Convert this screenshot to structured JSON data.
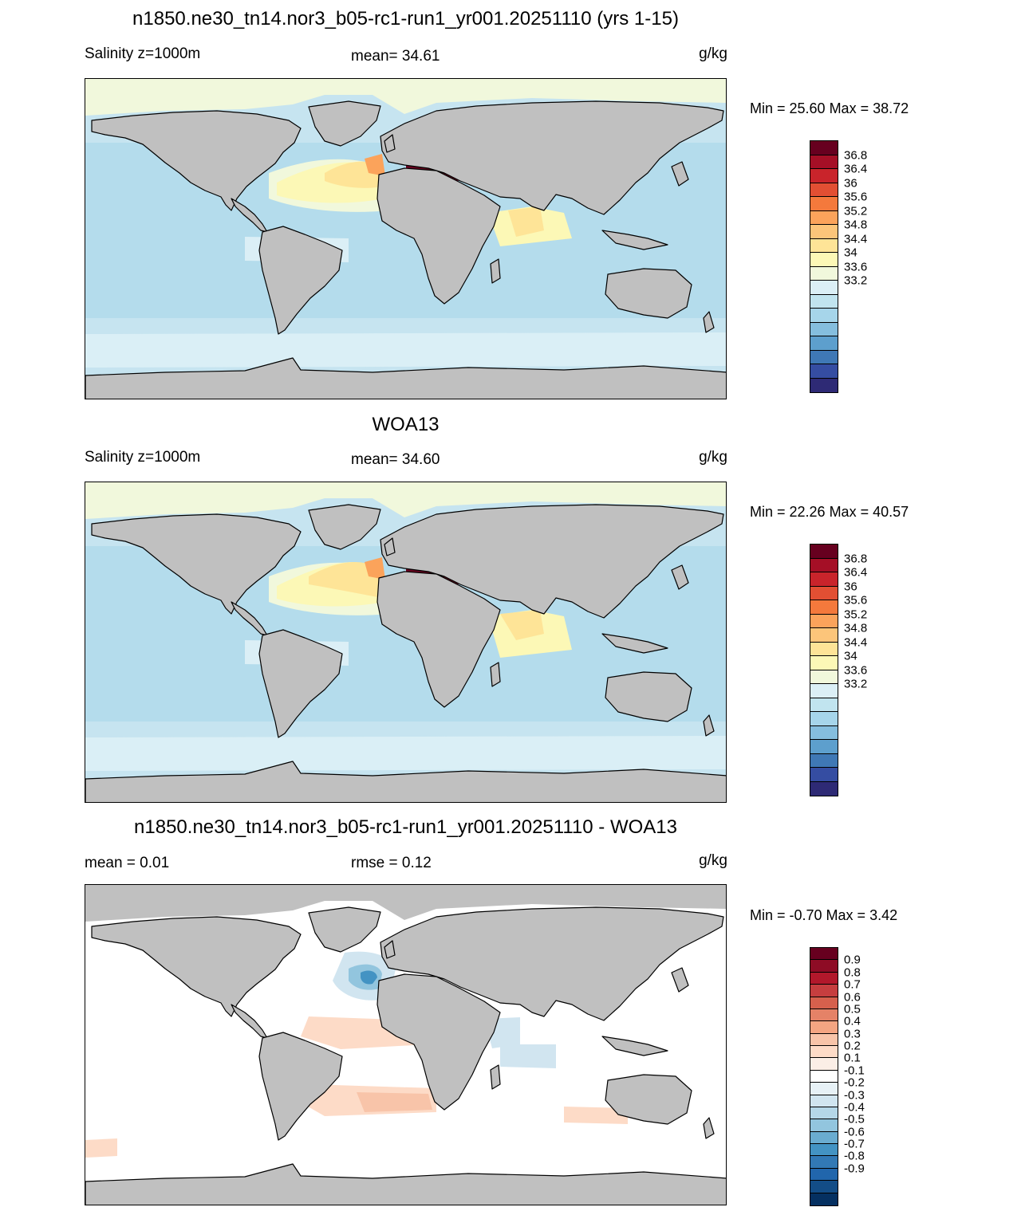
{
  "panels": [
    {
      "title": "n1850.ne30_tn14.nor3_b05-rc1-run1_yr001.20251110 (yrs 1-15)",
      "left": "Salinity z=1000m",
      "center": "mean=  34.61",
      "right": "g/kg",
      "minmax": "Min =  25.60 Max =  38.72",
      "ocean_color": "#c6e4f0",
      "colorbar": {
        "colors": [
          "#67001f",
          "#a50f26",
          "#c9242b",
          "#e24f33",
          "#f4793c",
          "#fba35b",
          "#fcc57a",
          "#fee497",
          "#fcf8b6",
          "#f1f8dc",
          "#dbeff6",
          "#c1e4ef",
          "#a6d5ea",
          "#85bede",
          "#5d9fcd",
          "#3f78b5",
          "#354da2",
          "#2e2a75"
        ],
        "labels": [
          "36.8",
          "36.4",
          "36",
          "35.6",
          "35.2",
          "34.8",
          "34.4",
          "34",
          "33.6",
          "33.2"
        ]
      }
    },
    {
      "title": "WOA13",
      "left": "Salinity z=1000m",
      "center": "mean=  34.60",
      "right": "g/kg",
      "minmax": "Min =  22.26 Max =  40.57",
      "ocean_color": "#c6e4f0",
      "colorbar": {
        "colors": [
          "#67001f",
          "#a50f26",
          "#c9242b",
          "#e24f33",
          "#f4793c",
          "#fba35b",
          "#fcc57a",
          "#fee497",
          "#fcf8b6",
          "#f1f8dc",
          "#dbeff6",
          "#c1e4ef",
          "#a6d5ea",
          "#85bede",
          "#5d9fcd",
          "#3f78b5",
          "#354da2",
          "#2e2a75"
        ],
        "labels": [
          "36.8",
          "36.4",
          "36",
          "35.6",
          "35.2",
          "34.8",
          "34.4",
          "34",
          "33.6",
          "33.2"
        ]
      }
    },
    {
      "title": "n1850.ne30_tn14.nor3_b05-rc1-run1_yr001.20251110 - WOA13",
      "left": "mean =   0.01",
      "center": "rmse =   0.12",
      "right": "g/kg",
      "minmax": "Min =  -0.70 Max =   3.42",
      "ocean_color": "#ffffff",
      "colorbar": {
        "colors": [
          "#67001f",
          "#8e0c25",
          "#b2182b",
          "#c63e3f",
          "#d6604d",
          "#e58267",
          "#f4a582",
          "#f8c4a9",
          "#fddbc7",
          "#fbeee6",
          "#ffffff",
          "#e7f1f6",
          "#d1e5f0",
          "#b5d7e8",
          "#92c5de",
          "#6aacd0",
          "#4393c3",
          "#3279b5",
          "#2166ac",
          "#134d87",
          "#053061"
        ],
        "labels": [
          "0.9",
          "0.8",
          "0.7",
          "0.6",
          "0.5",
          "0.4",
          "0.3",
          "0.2",
          "0.1",
          "-0.1",
          "-0.2",
          "-0.3",
          "-0.4",
          "-0.5",
          "-0.6",
          "-0.7",
          "-0.8",
          "-0.9"
        ]
      }
    }
  ]
}
